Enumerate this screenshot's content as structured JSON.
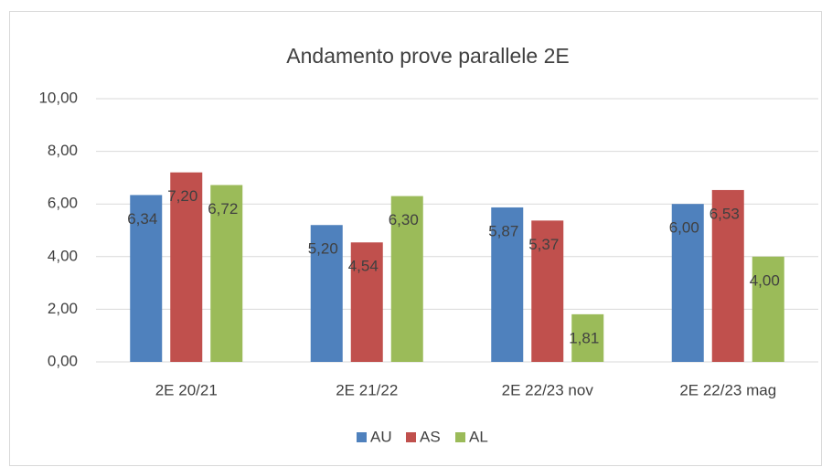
{
  "chart_data": {
    "type": "bar",
    "title": "Andamento prove parallele 2E",
    "categories": [
      "2E 20/21",
      "2E 21/22",
      "2E 22/23 nov",
      "2E 22/23 mag"
    ],
    "series": [
      {
        "name": "AU",
        "color": "#4f81bd",
        "values": [
          6.34,
          5.2,
          5.87,
          6.0
        ],
        "value_labels": [
          "6,34",
          "5,20",
          "5,87",
          "6,00"
        ]
      },
      {
        "name": "AS",
        "color": "#c0504d",
        "values": [
          7.2,
          4.54,
          5.37,
          6.53
        ],
        "value_labels": [
          "7,20",
          "4,54",
          "5,37",
          "6,53"
        ]
      },
      {
        "name": "AL",
        "color": "#9bbb59",
        "values": [
          6.72,
          6.3,
          1.81,
          4.0
        ],
        "value_labels": [
          "6,72",
          "6,30",
          "1,81",
          "4,00"
        ]
      }
    ],
    "ylim": [
      0,
      10
    ],
    "yticks": [
      {
        "value": 0,
        "label": "0,00"
      },
      {
        "value": 2,
        "label": "2,00"
      },
      {
        "value": 4,
        "label": "4,00"
      },
      {
        "value": 6,
        "label": "6,00"
      },
      {
        "value": 8,
        "label": "8,00"
      },
      {
        "value": 10,
        "label": "10,00"
      }
    ],
    "grid": true,
    "legend": "bottom"
  }
}
